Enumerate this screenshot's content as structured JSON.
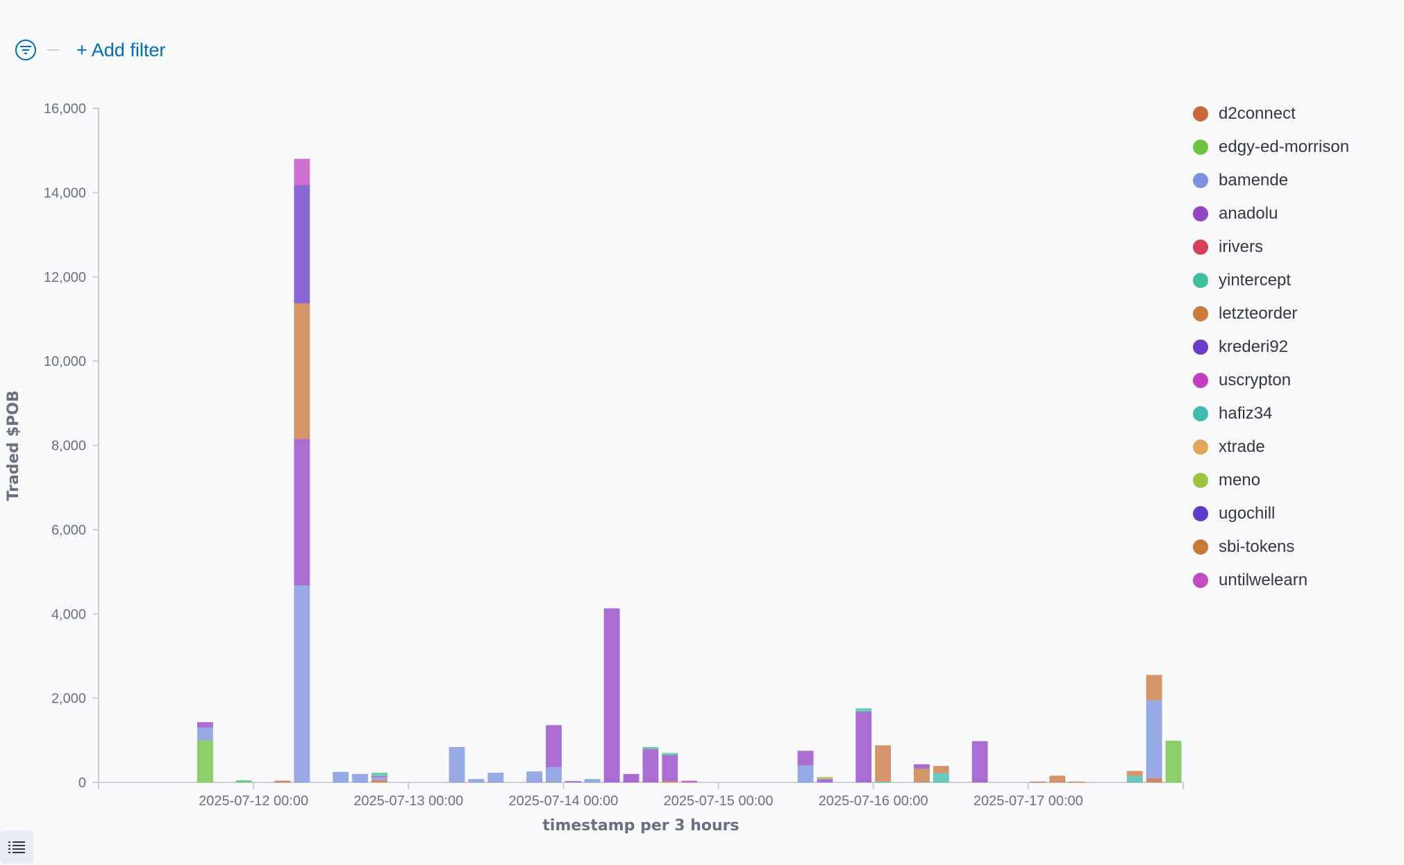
{
  "toolbar": {
    "add_filter_label": "+ Add filter",
    "filter_icon": "filter-icon",
    "list_icon": "list-icon"
  },
  "chart_data": {
    "type": "bar",
    "stacked": true,
    "title": "",
    "xlabel": "timestamp per 3 hours",
    "ylabel": "Traded $POB",
    "ylim": [
      0,
      16000
    ],
    "yticks": [
      0,
      2000,
      4000,
      6000,
      8000,
      10000,
      12000,
      14000,
      16000
    ],
    "ytick_labels": [
      "0",
      "2,000",
      "4,000",
      "6,000",
      "8,000",
      "10,000",
      "12,000",
      "14,000",
      "16,000"
    ],
    "x_date_range": [
      "2025-07-11 00:00",
      "2025-07-18 00:00"
    ],
    "xtick_labels": [
      "2025-07-12 00:00",
      "2025-07-13 00:00",
      "2025-07-14 00:00",
      "2025-07-15 00:00",
      "2025-07-16 00:00",
      "2025-07-17 00:00"
    ],
    "legend_position": "right",
    "grid": false,
    "series": [
      {
        "name": "d2connect",
        "color": "#c9683d"
      },
      {
        "name": "edgy-ed-morrison",
        "color": "#6dc33f"
      },
      {
        "name": "bamende",
        "color": "#7b93de"
      },
      {
        "name": "anadolu",
        "color": "#9345c4"
      },
      {
        "name": "irivers",
        "color": "#d6405a"
      },
      {
        "name": "yintercept",
        "color": "#42c09b"
      },
      {
        "name": "letzteorder",
        "color": "#c97a3d"
      },
      {
        "name": "krederi92",
        "color": "#6a3dc6"
      },
      {
        "name": "uscrypton",
        "color": "#c33fc1"
      },
      {
        "name": "hafiz34",
        "color": "#3fbcad"
      },
      {
        "name": "xtrade",
        "color": "#e0a659"
      },
      {
        "name": "meno",
        "color": "#9cc43e"
      },
      {
        "name": "ugochill",
        "color": "#5b3ec5"
      },
      {
        "name": "sbi-tokens",
        "color": "#c57a37"
      },
      {
        "name": "untilwelearn",
        "color": "#c04dc2"
      }
    ],
    "bars": [
      {
        "x": "2025-07-11 15:00",
        "segments": [
          {
            "s": "edgy-ed-morrison",
            "v": 1000
          },
          {
            "s": "bamende",
            "v": 300
          },
          {
            "s": "anadolu",
            "v": 130
          }
        ]
      },
      {
        "x": "2025-07-11 21:00",
        "segments": [
          {
            "s": "edgy-ed-morrison",
            "v": 30
          },
          {
            "s": "yintercept",
            "v": 20
          }
        ]
      },
      {
        "x": "2025-07-12 03:00",
        "segments": [
          {
            "s": "d2connect",
            "v": 40
          }
        ]
      },
      {
        "x": "2025-07-12 06:00",
        "segments": [
          {
            "s": "bamende",
            "v": 4680
          },
          {
            "s": "anadolu",
            "v": 3470
          },
          {
            "s": "letzteorder",
            "v": 3220
          },
          {
            "s": "krederi92",
            "v": 2810
          },
          {
            "s": "untilwelearn",
            "v": 620
          }
        ]
      },
      {
        "x": "2025-07-12 12:00",
        "segments": [
          {
            "s": "bamende",
            "v": 250
          }
        ]
      },
      {
        "x": "2025-07-12 15:00",
        "segments": [
          {
            "s": "bamende",
            "v": 200
          }
        ]
      },
      {
        "x": "2025-07-12 18:00",
        "segments": [
          {
            "s": "d2connect",
            "v": 60
          },
          {
            "s": "bamende",
            "v": 60
          },
          {
            "s": "anadolu",
            "v": 30
          },
          {
            "s": "yintercept",
            "v": 80
          }
        ]
      },
      {
        "x": "2025-07-13 06:00",
        "segments": [
          {
            "s": "bamende",
            "v": 840
          }
        ]
      },
      {
        "x": "2025-07-13 09:00",
        "segments": [
          {
            "s": "bamende",
            "v": 80
          }
        ]
      },
      {
        "x": "2025-07-13 12:00",
        "segments": [
          {
            "s": "bamende",
            "v": 230
          }
        ]
      },
      {
        "x": "2025-07-13 18:00",
        "segments": [
          {
            "s": "bamende",
            "v": 260
          }
        ]
      },
      {
        "x": "2025-07-13 21:00",
        "segments": [
          {
            "s": "bamende",
            "v": 360
          },
          {
            "s": "anadolu",
            "v": 1000
          }
        ]
      },
      {
        "x": "2025-07-14 00:00",
        "segments": [
          {
            "s": "anadolu",
            "v": 30
          }
        ]
      },
      {
        "x": "2025-07-14 03:00",
        "segments": [
          {
            "s": "bamende",
            "v": 80
          }
        ]
      },
      {
        "x": "2025-07-14 06:00",
        "segments": [
          {
            "s": "anadolu",
            "v": 4130
          }
        ]
      },
      {
        "x": "2025-07-14 09:00",
        "segments": [
          {
            "s": "anadolu",
            "v": 200
          }
        ]
      },
      {
        "x": "2025-07-14 12:00",
        "segments": [
          {
            "s": "anadolu",
            "v": 790
          },
          {
            "s": "yintercept",
            "v": 50
          }
        ]
      },
      {
        "x": "2025-07-14 15:00",
        "segments": [
          {
            "s": "d2connect",
            "v": 30
          },
          {
            "s": "anadolu",
            "v": 620
          },
          {
            "s": "yintercept",
            "v": 50
          }
        ]
      },
      {
        "x": "2025-07-14 18:00",
        "segments": [
          {
            "s": "uscrypton",
            "v": 40
          }
        ]
      },
      {
        "x": "2025-07-15 12:00",
        "segments": [
          {
            "s": "bamende",
            "v": 400
          },
          {
            "s": "anadolu",
            "v": 350
          }
        ]
      },
      {
        "x": "2025-07-15 15:00",
        "segments": [
          {
            "s": "anadolu",
            "v": 80
          },
          {
            "s": "meno",
            "v": 50
          }
        ]
      },
      {
        "x": "2025-07-15 21:00",
        "segments": [
          {
            "s": "anadolu",
            "v": 1680
          },
          {
            "s": "yintercept",
            "v": 80
          }
        ]
      },
      {
        "x": "2025-07-16 00:00",
        "segments": [
          {
            "s": "hafiz34",
            "v": 20
          },
          {
            "s": "letzteorder",
            "v": 860
          }
        ]
      },
      {
        "x": "2025-07-16 06:00",
        "segments": [
          {
            "s": "letzteorder",
            "v": 330
          },
          {
            "s": "anadolu",
            "v": 100
          }
        ]
      },
      {
        "x": "2025-07-16 09:00",
        "segments": [
          {
            "s": "hafiz34",
            "v": 220
          },
          {
            "s": "letzteorder",
            "v": 170
          }
        ]
      },
      {
        "x": "2025-07-16 15:00",
        "segments": [
          {
            "s": "anadolu",
            "v": 980
          }
        ]
      },
      {
        "x": "2025-07-17 00:00",
        "segments": [
          {
            "s": "d2connect",
            "v": 20
          }
        ]
      },
      {
        "x": "2025-07-17 03:00",
        "segments": [
          {
            "s": "letzteorder",
            "v": 160
          }
        ]
      },
      {
        "x": "2025-07-17 06:00",
        "segments": [
          {
            "s": "letzteorder",
            "v": 20
          }
        ]
      },
      {
        "x": "2025-07-17 15:00",
        "segments": [
          {
            "s": "hafiz34",
            "v": 150
          },
          {
            "s": "letzteorder",
            "v": 120
          }
        ]
      },
      {
        "x": "2025-07-17 18:00",
        "segments": [
          {
            "s": "d2connect",
            "v": 100
          },
          {
            "s": "bamende",
            "v": 1850
          },
          {
            "s": "letzteorder",
            "v": 600
          }
        ]
      },
      {
        "x": "2025-07-17 21:00",
        "segments": [
          {
            "s": "edgy-ed-morrison",
            "v": 990
          }
        ]
      }
    ]
  }
}
